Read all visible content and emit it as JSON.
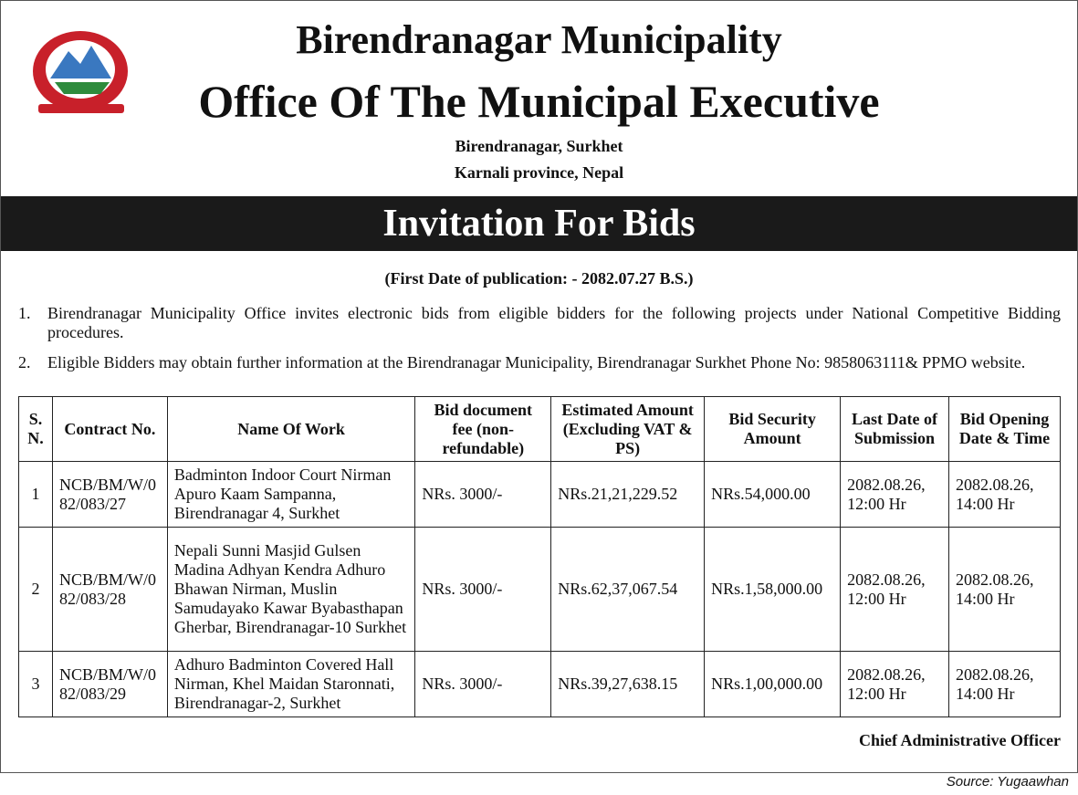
{
  "header": {
    "title": "Birendranagar Municipality",
    "subtitle": "Office Of The Municipal Executive",
    "address_line1": "Birendranagar, Surkhet",
    "address_line2": "Karnali province, Nepal"
  },
  "banner": "Invitation For Bids",
  "publication_date": "(First Date of publication: - 2082.07.27 B.S.)",
  "paragraphs": [
    {
      "number": "1.",
      "text": "Birendranagar Municipality Office invites electronic bids from eligible bidders for the following projects under National Competitive Bidding procedures."
    },
    {
      "number": "2.",
      "text": "Eligible Bidders may obtain further information at the Birendranagar Municipality, Birendranagar Surkhet Phone No: 9858063111& PPMO website."
    }
  ],
  "table": {
    "columns": [
      "S. N.",
      "Contract No.",
      "Name Of Work",
      "Bid document fee (non-refundable)",
      "Estimated Amount (Excluding VAT & PS)",
      "Bid Security Amount",
      "Last Date of Submission",
      "Bid Opening Date & Time"
    ],
    "rows": [
      [
        "1",
        "NCB/BM/W/082/083/27",
        "Badminton Indoor Court Nirman Apuro Kaam Sampanna, Birendranagar 4, Surkhet",
        "NRs. 3000/-",
        "NRs.21,21,229.52",
        "NRs.54,000.00",
        "2082.08.26, 12:00 Hr",
        "2082.08.26, 14:00 Hr"
      ],
      [
        "2",
        "NCB/BM/W/082/083/28",
        "Nepali Sunni Masjid Gulsen Madina Adhyan Kendra Adhuro Bhawan Nirman, Muslin Samudayako Kawar Byabasthapan Gherbar, Birendranagar-10 Surkhet",
        "NRs. 3000/-",
        "NRs.62,37,067.54",
        "NRs.1,58,000.00",
        "2082.08.26, 12:00 Hr",
        "2082.08.26, 14:00 Hr"
      ],
      [
        "3",
        "NCB/BM/W/082/083/29",
        "Adhuro Badminton Covered Hall Nirman, Khel Maidan Staronnati, Birendranagar-2, Surkhet",
        "NRs. 3000/-",
        "NRs.39,27,638.15",
        "NRs.1,00,000.00",
        "2082.08.26, 12:00 Hr",
        "2082.08.26, 14:00 Hr"
      ]
    ]
  },
  "signature": "Chief Administrative Officer",
  "source": "Source: Yugaawhan"
}
